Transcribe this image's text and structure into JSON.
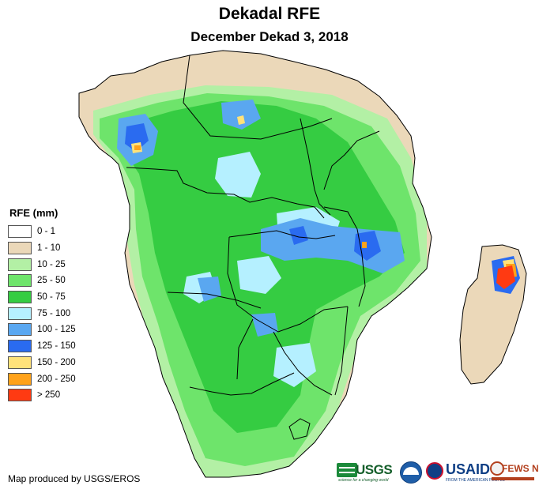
{
  "title": "Dekadal RFE",
  "subtitle": "December Dekad 3, 2018",
  "legend": {
    "title": "RFE (mm)",
    "classes": [
      {
        "label": "0 - 1",
        "color": "#ffffff"
      },
      {
        "label": "1 - 10",
        "color": "#ebd8b9"
      },
      {
        "label": "10 - 25",
        "color": "#b3f0a5"
      },
      {
        "label": "25 - 50",
        "color": "#6ee46b"
      },
      {
        "label": "50 - 75",
        "color": "#35cc42"
      },
      {
        "label": "75 - 100",
        "color": "#b5f0ff"
      },
      {
        "label": "100 - 125",
        "color": "#5aa7f0"
      },
      {
        "label": "125 - 150",
        "color": "#2a6bf0"
      },
      {
        "label": "150 - 200",
        "color": "#ffe27a"
      },
      {
        "label": "200 - 250",
        "color": "#ffa21a"
      },
      {
        "label": "> 250",
        "color": "#ff3a12"
      }
    ]
  },
  "credit": "Map produced by USGS/EROS",
  "logos": {
    "usgs": {
      "name": "USGS",
      "tagline": "science for a changing world"
    },
    "noaa": {
      "name": "noaa-emblem"
    },
    "usaid": {
      "name": "USAID",
      "tagline": "FROM THE AMERICAN PEOPLE"
    },
    "fews": {
      "name": "FEWS NET"
    }
  }
}
